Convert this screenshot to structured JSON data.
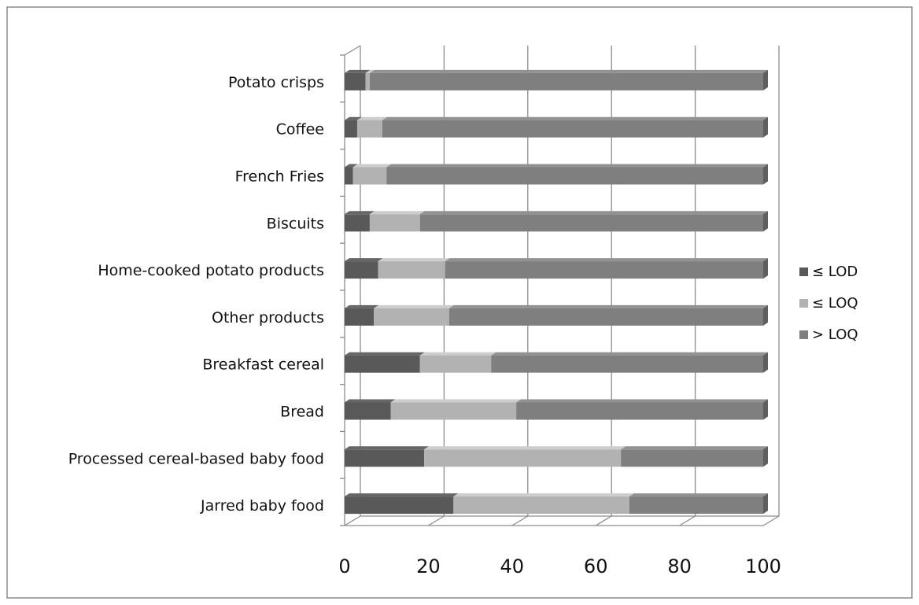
{
  "chart_data": {
    "type": "bar",
    "orientation": "horizontal",
    "stacked": true,
    "style": "3d",
    "categories": [
      "Potato crisps",
      "Coffee",
      "French Fries",
      "Biscuits",
      "Home-cooked potato products",
      "Other products",
      "Breakfast cereal",
      "Bread",
      "Processed cereal-based  baby food",
      "Jarred baby food"
    ],
    "series": [
      {
        "name": "≤ LOD",
        "color": "#595959",
        "values": [
          5,
          3,
          2,
          6,
          8,
          7,
          18,
          11,
          19,
          26
        ]
      },
      {
        "name": "≤ LOQ",
        "color": "#b2b2b2",
        "values": [
          1,
          6,
          8,
          12,
          16,
          18,
          17,
          30,
          47,
          42
        ]
      },
      {
        "name": "> LOQ",
        "color": "#7f7f7f",
        "values": [
          94,
          91,
          90,
          82,
          76,
          75,
          65,
          59,
          34,
          32
        ]
      }
    ],
    "xlim": [
      0,
      100
    ],
    "xticks": [
      "0",
      "20",
      "40",
      "60",
      "80",
      "100"
    ],
    "grid": true,
    "legend_position": "right"
  }
}
